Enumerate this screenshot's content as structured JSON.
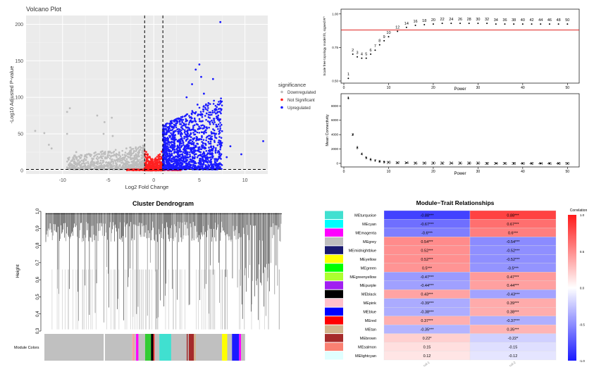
{
  "chart_data": [
    {
      "type": "scatter",
      "title": "Volcano Plot",
      "xlabel": "Log2 Fold Change",
      "ylabel": "-Log10 Adjusted P-value",
      "xlim": [
        -14,
        12.5
      ],
      "ylim": [
        -5,
        212
      ],
      "x_ticks": [
        "-10",
        "-5",
        "0",
        "5",
        "10"
      ],
      "x_tick_values": [
        -10,
        -5,
        0,
        5,
        10
      ],
      "y_ticks": [
        "0",
        "50",
        "100",
        "150",
        "200"
      ],
      "y_tick_values": [
        0,
        50,
        100,
        150,
        200
      ],
      "thresholds": {
        "log2fc": [
          -1,
          1
        ],
        "neg_log10_p": 1.3
      },
      "legend": {
        "title": "significance",
        "position": "right",
        "entries": [
          "Downregulated",
          "Not Significant",
          "Upregulated"
        ]
      },
      "colors": {
        "Downregulated": "#bdbdbd",
        "Not Significant": "#ff2020",
        "Upregulated": "#1a1aff"
      },
      "series": [
        {
          "name": "Downregulated",
          "points": [
            [
              -9.2,
              85
            ],
            [
              -9.5,
              80
            ],
            [
              -6.2,
              75
            ],
            [
              -4.6,
              72
            ],
            [
              -5.4,
              66
            ],
            [
              -13,
              54
            ],
            [
              -12,
              51
            ],
            [
              -9.5,
              50
            ],
            [
              -5.5,
              50
            ],
            [
              -4.5,
              47
            ],
            [
              -11.5,
              35
            ],
            [
              -11.2,
              30
            ],
            [
              -8.5,
              25
            ],
            [
              -7,
              22
            ],
            [
              -3,
              30
            ],
            [
              -2.5,
              25
            ],
            [
              -2,
              20
            ]
          ]
        },
        {
          "name": "Upregulated",
          "points": [
            [
              7.3,
              203
            ],
            [
              5.0,
              145
            ],
            [
              4.6,
              138
            ],
            [
              5.2,
              128
            ],
            [
              6.5,
              125
            ],
            [
              4.2,
              118
            ],
            [
              5.5,
              105
            ],
            [
              3.6,
              100
            ],
            [
              6.0,
              92
            ],
            [
              4.8,
              90
            ],
            [
              7.0,
              80
            ],
            [
              5.8,
              78
            ],
            [
              3.5,
              75
            ],
            [
              8.4,
              33
            ],
            [
              9.6,
              22
            ],
            [
              12.0,
              40
            ],
            [
              8.0,
              18
            ],
            [
              3.0,
              70
            ]
          ]
        }
      ]
    },
    {
      "type": "scatter",
      "xlabel": "Power",
      "ylabel": "Scale free topology model fit, signed R^",
      "xlim": [
        0,
        52
      ],
      "ylim": [
        0.5,
        1.02
      ],
      "x_ticks": [
        "0",
        "10",
        "20",
        "30",
        "40",
        "50"
      ],
      "x_tick_values": [
        0,
        10,
        20,
        30,
        40,
        50
      ],
      "y_ticks": [
        "0.50",
        "0.75",
        "1.00"
      ],
      "y_tick_values": [
        0.5,
        0.75,
        1.0
      ],
      "hline": 0.88,
      "hline_color": "#e0211e",
      "powers": [
        1,
        2,
        3,
        4,
        5,
        6,
        7,
        8,
        9,
        10,
        12,
        14,
        16,
        18,
        20,
        22,
        24,
        26,
        28,
        30,
        32,
        34,
        36,
        38,
        40,
        42,
        44,
        46,
        48,
        50
      ],
      "values": [
        0.52,
        0.7,
        0.68,
        0.67,
        0.67,
        0.7,
        0.73,
        0.77,
        0.8,
        0.83,
        0.87,
        0.9,
        0.915,
        0.92,
        0.925,
        0.93,
        0.93,
        0.93,
        0.93,
        0.93,
        0.93,
        0.925,
        0.925,
        0.925,
        0.925,
        0.925,
        0.925,
        0.925,
        0.925,
        0.925
      ]
    },
    {
      "type": "scatter",
      "xlabel": "Power",
      "ylabel": "Mean Connectivity",
      "xlim": [
        0,
        52
      ],
      "ylim": [
        -300,
        9500
      ],
      "x_ticks": [
        "0",
        "10",
        "20",
        "30",
        "40",
        "50"
      ],
      "x_tick_values": [
        0,
        10,
        20,
        30,
        40,
        50
      ],
      "y_ticks": [
        "0",
        "2000",
        "4000",
        "6000",
        "8000"
      ],
      "y_tick_values": [
        0,
        2000,
        4000,
        6000,
        8000
      ],
      "powers": [
        1,
        2,
        3,
        4,
        5,
        6,
        7,
        8,
        9,
        10,
        12,
        14,
        16,
        18,
        20,
        22,
        24,
        26,
        28,
        30,
        32,
        34,
        36,
        38,
        40,
        42,
        44,
        46,
        48,
        50
      ],
      "values": [
        9100,
        4000,
        2200,
        1300,
        800,
        550,
        380,
        280,
        200,
        160,
        110,
        80,
        60,
        50,
        40,
        35,
        30,
        26,
        22,
        20,
        18,
        16,
        14,
        13,
        12,
        11,
        10,
        9,
        9,
        8
      ],
      "point_labels": [
        "1",
        "2",
        "3",
        "4",
        "5",
        "6",
        "7",
        "8",
        "9",
        "10",
        "12",
        "14",
        "16",
        "18",
        "20",
        "22",
        "24",
        "26",
        "28",
        "30",
        "32",
        "34",
        "36",
        "38",
        "40",
        "42",
        "44",
        "46",
        "48",
        "50"
      ]
    },
    {
      "type": "dendrogram",
      "title": "Cluster Dendrogram",
      "ylabel": "Height",
      "ylim": [
        0.3,
        1.0
      ],
      "y_ticks": [
        "0.3",
        "0.4",
        "0.5",
        "0.6",
        "0.7",
        "0.8",
        "0.9",
        "1.0"
      ],
      "y_tick_values": [
        0.3,
        0.4,
        0.5,
        0.6,
        0.7,
        0.8,
        0.9,
        1.0
      ],
      "color_bar_label": "Module Colors",
      "color_bar": [
        {
          "color": "#c0c0c0",
          "width": 0.25
        },
        {
          "color": "#ffffff",
          "width": 0.005
        },
        {
          "color": "#c0c0c0",
          "width": 0.115
        },
        {
          "color": "#f4a0a0",
          "width": 0.01
        },
        {
          "color": "#c0c0c0",
          "width": 0.006
        },
        {
          "color": "#ff00ff",
          "width": 0.01
        },
        {
          "color": "#c0c0c0",
          "width": 0.028
        },
        {
          "color": "#33cc33",
          "width": 0.025
        },
        {
          "color": "#000000",
          "width": 0.01
        },
        {
          "color": "#ff2020",
          "width": 0.005
        },
        {
          "color": "#c0c0c0",
          "width": 0.02
        },
        {
          "color": "#40e0d0",
          "width": 0.05
        },
        {
          "color": "#c0c0c0",
          "width": 0.065
        },
        {
          "color": "#a03030",
          "width": 0.005
        },
        {
          "color": "#c0c0c0",
          "width": 0.004
        },
        {
          "color": "#a52a2a",
          "width": 0.022
        },
        {
          "color": "#d2b48c",
          "width": 0.008
        },
        {
          "color": "#c0c0c0",
          "width": 0.11
        },
        {
          "color": "#ffff00",
          "width": 0.022
        },
        {
          "color": "#c0c0c0",
          "width": 0.02
        },
        {
          "color": "#1a1aff",
          "width": 0.03
        },
        {
          "color": "#ff00ff",
          "width": 0.008
        },
        {
          "color": "#c0c0c0",
          "width": 0.017
        }
      ]
    },
    {
      "type": "heatmap",
      "title": "Module−Trait Relationships",
      "legend_title": "Correlation",
      "legend_ticks": [
        "1.0",
        "0.5",
        "0.0",
        "-0.5",
        "-1.0"
      ],
      "legend_tick_values": [
        1,
        0.5,
        0,
        -0.5,
        -1
      ],
      "modules": [
        "MEturquoise",
        "MEcyan",
        "MEmagenta",
        "MEgrey",
        "MEmidnightblue",
        "MEyellow",
        "MEgreen",
        "MEgreenyellow",
        "MEpurple",
        "MEblack",
        "MEpink",
        "MEblue",
        "MEred",
        "MEtan",
        "MEbrown",
        "MEsalmon",
        "MElightcyan"
      ],
      "module_colors": [
        "#40e0d0",
        "#00ffff",
        "#ff00ff",
        "#bebebe",
        "#191970",
        "#ffff00",
        "#00ff00",
        "#adff2f",
        "#a020f0",
        "#000000",
        "#ffc0cb",
        "#0000ff",
        "#ff0000",
        "#d2b48c",
        "#a52a2a",
        "#fa8072",
        "#e0ffff"
      ],
      "columns": [
        "col-1",
        "col-2"
      ],
      "values": [
        [
          -0.88,
          0.88
        ],
        [
          -0.67,
          0.67
        ],
        [
          -0.6,
          0.6
        ],
        [
          0.54,
          -0.54
        ],
        [
          0.52,
          -0.52
        ],
        [
          0.52,
          -0.52
        ],
        [
          0.5,
          -0.5
        ],
        [
          -0.47,
          0.47
        ],
        [
          -0.44,
          0.44
        ],
        [
          0.43,
          -0.43
        ],
        [
          -0.39,
          0.39
        ],
        [
          -0.38,
          0.38
        ],
        [
          0.37,
          -0.37
        ],
        [
          -0.35,
          0.35
        ],
        [
          0.22,
          -0.22
        ],
        [
          0.15,
          -0.15
        ],
        [
          0.12,
          -0.12
        ]
      ],
      "labels": [
        [
          "-0.88***",
          "0.88***"
        ],
        [
          "-0.67***",
          "0.67***"
        ],
        [
          "-0.6***",
          "0.6***"
        ],
        [
          "0.54***",
          "-0.54***"
        ],
        [
          "0.52***",
          "-0.52***"
        ],
        [
          "0.52***",
          "-0.52***"
        ],
        [
          "0.5***",
          "-0.5***"
        ],
        [
          "-0.47***",
          "0.47***"
        ],
        [
          "-0.44***",
          "0.44***"
        ],
        [
          "0.43***",
          "-0.43***"
        ],
        [
          "-0.39***",
          "0.39***"
        ],
        [
          "-0.38***",
          "0.38***"
        ],
        [
          "0.37***",
          "-0.37***"
        ],
        [
          "-0.35***",
          "0.35***"
        ],
        [
          "0.22*",
          "-0.22*"
        ],
        [
          "0.15",
          "-0.15"
        ],
        [
          "0.12",
          "-0.12"
        ]
      ]
    }
  ]
}
